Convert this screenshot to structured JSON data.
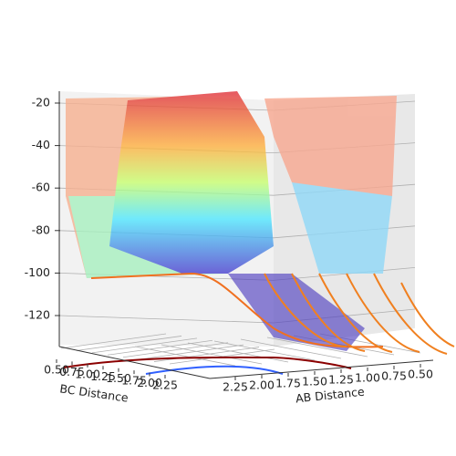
{
  "chart_data": {
    "type": "surface3d",
    "zlim": [
      -135,
      -18
    ],
    "zticks": [
      -20,
      -40,
      -60,
      -80,
      -100,
      -120
    ],
    "xlabel": "BC Distance",
    "xlim": [
      0.5,
      2.25
    ],
    "xticks": [
      {
        "value": 0.5,
        "label": "0.50"
      },
      {
        "value": 0.75,
        "label": "0.75"
      },
      {
        "value": 1.0,
        "label": "1.00"
      },
      {
        "value": 1.25,
        "label": "1.25"
      },
      {
        "value": 1.5,
        "label": "1.50"
      },
      {
        "value": 1.75,
        "label": "1.75"
      },
      {
        "value": 2.0,
        "label": "2.00"
      },
      {
        "value": 2.25,
        "label": "2.25"
      }
    ],
    "ylabel": "AB Distance",
    "ylim": [
      2.25,
      0.5
    ],
    "yticks": [
      {
        "value": 2.25,
        "label": "2.25"
      },
      {
        "value": 2.0,
        "label": "2.00"
      },
      {
        "value": 1.75,
        "label": "1.75"
      },
      {
        "value": 1.5,
        "label": "1.50"
      },
      {
        "value": 1.25,
        "label": "1.25"
      },
      {
        "value": 1.0,
        "label": "1.00"
      },
      {
        "value": 0.75,
        "label": "0.75"
      },
      {
        "value": 0.5,
        "label": "0.50"
      }
    ],
    "grid": true
  }
}
